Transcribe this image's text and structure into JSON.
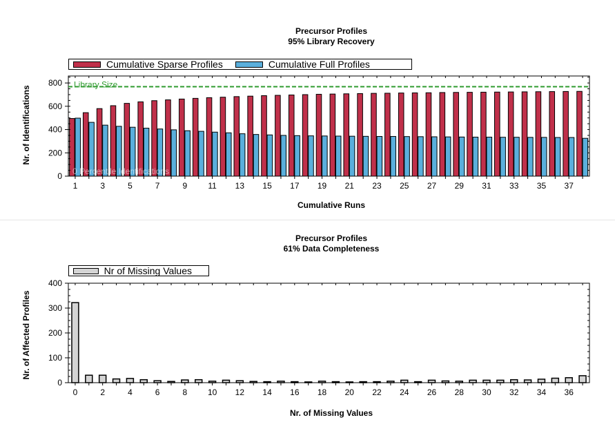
{
  "chart_data": [
    {
      "type": "bar",
      "title": "Precursor Profiles",
      "subtitle": "95% Library Recovery",
      "xlabel": "Cumulative Runs",
      "ylabel": "Nr. of Identifications",
      "ylim": [
        0,
        860
      ],
      "yticks": [
        0,
        200,
        400,
        600,
        800
      ],
      "xticks": [
        1,
        3,
        5,
        7,
        9,
        11,
        13,
        15,
        17,
        19,
        21,
        23,
        25,
        27,
        29,
        31,
        33,
        35,
        37
      ],
      "categories": [
        1,
        2,
        3,
        4,
        5,
        6,
        7,
        8,
        9,
        10,
        11,
        12,
        13,
        14,
        15,
        16,
        17,
        18,
        19,
        20,
        21,
        22,
        23,
        24,
        25,
        26,
        27,
        28,
        29,
        30,
        31,
        32,
        33,
        34,
        35,
        36,
        37,
        38
      ],
      "series": [
        {
          "name": "Cumulative Sparse Profiles",
          "color": "#c0304a",
          "values": [
            495,
            545,
            580,
            605,
            625,
            638,
            648,
            655,
            662,
            668,
            674,
            678,
            683,
            687,
            691,
            694,
            697,
            700,
            703,
            705,
            707,
            709,
            711,
            712,
            714,
            715,
            716,
            718,
            719,
            720,
            721,
            722,
            723,
            724,
            725,
            726,
            727,
            728
          ]
        },
        {
          "name": "Cumulative Full Profiles",
          "color": "#5aafdc",
          "values": [
            498,
            462,
            438,
            428,
            420,
            412,
            405,
            398,
            390,
            385,
            378,
            372,
            364,
            358,
            354,
            350,
            348,
            346,
            345,
            344,
            343,
            342,
            341,
            341,
            340,
            339,
            338,
            337,
            336,
            335,
            335,
            334,
            334,
            333,
            333,
            332,
            332,
            325
          ]
        }
      ],
      "reference_line": {
        "label": "Library Size",
        "value": 768,
        "color": "#2e9a2e"
      },
      "watermark": "0 Percentile Identifications",
      "legend": "top-left"
    },
    {
      "type": "bar",
      "title": "Precursor Profiles",
      "subtitle": "61% Data Completeness",
      "xlabel": "Nr. of Missing Values",
      "ylabel": "Nr. of Affected Profiles",
      "ylim": [
        0,
        400
      ],
      "yticks": [
        0,
        100,
        200,
        300,
        400
      ],
      "xticks": [
        0,
        2,
        4,
        6,
        8,
        10,
        12,
        14,
        16,
        18,
        20,
        22,
        24,
        26,
        28,
        30,
        32,
        34,
        36
      ],
      "categories": [
        0,
        1,
        2,
        3,
        4,
        5,
        6,
        7,
        8,
        9,
        10,
        11,
        12,
        13,
        14,
        15,
        16,
        17,
        18,
        19,
        20,
        21,
        22,
        23,
        24,
        25,
        26,
        27,
        28,
        29,
        30,
        31,
        32,
        33,
        34,
        35,
        36,
        37
      ],
      "series": [
        {
          "name": "Nr of Missing Values",
          "color": "#d4d4d4",
          "values": [
            322,
            30,
            30,
            15,
            17,
            12,
            8,
            5,
            11,
            12,
            6,
            10,
            8,
            5,
            4,
            6,
            4,
            3,
            6,
            4,
            3,
            4,
            4,
            6,
            10,
            4,
            10,
            7,
            6,
            10,
            10,
            10,
            12,
            11,
            14,
            18,
            20,
            28
          ]
        }
      ],
      "legend": "top-left"
    }
  ]
}
